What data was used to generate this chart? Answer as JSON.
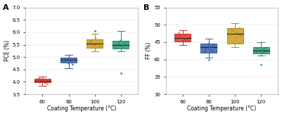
{
  "panel_A": {
    "title": "A",
    "ylabel": "PCE (%)",
    "xlabel": "Coating Temperature (°C)",
    "ylim": [
      3.5,
      7.0
    ],
    "yticks": [
      3.5,
      4.0,
      4.5,
      5.0,
      5.5,
      6.0,
      6.5,
      7.0
    ],
    "xtick_labels": [
      "60",
      "80",
      "100",
      "120"
    ],
    "colors": [
      "#e8534a",
      "#5578b8",
      "#d4aa3a",
      "#4aaa88"
    ],
    "edge_colors": [
      "#c03030",
      "#3358a0",
      "#b08a18",
      "#228a68"
    ],
    "boxes": [
      {
        "med": 4.05,
        "q1": 3.97,
        "q3": 4.12,
        "whislo": 3.85,
        "whishi": 4.22,
        "fliers": []
      },
      {
        "med": 4.88,
        "q1": 4.78,
        "q3": 4.97,
        "whislo": 4.55,
        "whishi": 5.1,
        "fliers": []
      },
      {
        "med": 5.55,
        "q1": 5.38,
        "q3": 5.72,
        "whislo": 5.22,
        "whishi": 5.95,
        "fliers": [
          6.05
        ]
      },
      {
        "med": 5.5,
        "q1": 5.35,
        "q3": 5.65,
        "whislo": 5.22,
        "whishi": 6.05,
        "fliers": [
          4.35
        ]
      }
    ],
    "scatter": [
      [
        4.0,
        4.05,
        4.12,
        4.08,
        4.02,
        4.15,
        3.98,
        3.96,
        4.05,
        4.12,
        4.03,
        3.92,
        4.08
      ],
      [
        4.82,
        4.88,
        4.92,
        4.78,
        4.96,
        4.85,
        4.8,
        4.75,
        4.9,
        4.72,
        4.86,
        4.95,
        4.68
      ],
      [
        5.52,
        5.58,
        5.62,
        5.45,
        5.68,
        5.72,
        5.42,
        5.6,
        5.55,
        5.65,
        5.5,
        5.78,
        5.48
      ],
      [
        5.48,
        5.55,
        5.52,
        5.38,
        5.62,
        5.68,
        5.42,
        5.58,
        5.5,
        5.55,
        5.45,
        5.6,
        5.35
      ]
    ]
  },
  "panel_B": {
    "title": "B",
    "ylabel": "FF (%)",
    "xlabel": "Coating Temperature (°C)",
    "ylim": [
      30,
      55
    ],
    "yticks": [
      30,
      35,
      40,
      45,
      50,
      55
    ],
    "xtick_labels": [
      "60",
      "80",
      "100",
      "120"
    ],
    "colors": [
      "#e8534a",
      "#5578b8",
      "#d4aa3a",
      "#4aaa88"
    ],
    "edge_colors": [
      "#c03030",
      "#3358a0",
      "#b08a18",
      "#228a68"
    ],
    "boxes": [
      {
        "med": 46.3,
        "q1": 45.2,
        "q3": 47.5,
        "whislo": 44.2,
        "whishi": 48.5,
        "fliers": []
      },
      {
        "med": 43.5,
        "q1": 42.0,
        "q3": 44.5,
        "whislo": 40.5,
        "whishi": 46.0,
        "fliers": [
          40.0
        ]
      },
      {
        "med": 47.5,
        "q1": 44.5,
        "q3": 49.0,
        "whislo": 43.5,
        "whishi": 50.5,
        "fliers": []
      },
      {
        "med": 42.5,
        "q1": 41.8,
        "q3": 43.5,
        "whislo": 41.2,
        "whishi": 45.0,
        "fliers": [
          38.5
        ]
      }
    ],
    "scatter": [
      [
        46.0,
        46.5,
        45.8,
        47.2,
        45.5,
        46.8,
        47.5,
        45.2,
        46.3,
        47.8,
        46.1,
        45.6,
        47.0
      ],
      [
        43.2,
        43.8,
        44.2,
        42.5,
        44.5,
        43.5,
        42.2,
        43.0,
        44.0,
        42.8,
        43.6,
        42.5,
        44.3
      ],
      [
        47.2,
        47.8,
        48.2,
        46.5,
        48.8,
        49.2,
        44.8,
        47.5,
        47.0,
        48.5,
        47.2,
        48.0,
        46.8
      ],
      [
        42.2,
        42.5,
        43.0,
        41.8,
        43.5,
        42.8,
        42.0,
        43.2,
        42.6,
        43.0,
        42.4,
        42.8,
        43.2
      ]
    ]
  }
}
